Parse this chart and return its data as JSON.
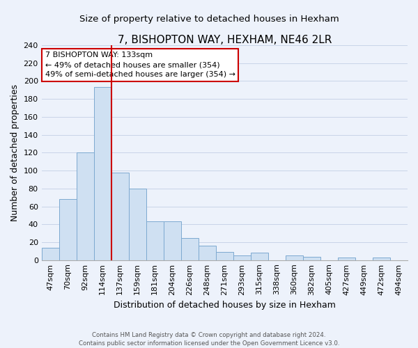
{
  "title": "7, BISHOPTON WAY, HEXHAM, NE46 2LR",
  "subtitle": "Size of property relative to detached houses in Hexham",
  "xlabel": "Distribution of detached houses by size in Hexham",
  "ylabel": "Number of detached properties",
  "bar_labels": [
    "47sqm",
    "70sqm",
    "92sqm",
    "114sqm",
    "137sqm",
    "159sqm",
    "181sqm",
    "204sqm",
    "226sqm",
    "248sqm",
    "271sqm",
    "293sqm",
    "315sqm",
    "338sqm",
    "360sqm",
    "382sqm",
    "405sqm",
    "427sqm",
    "449sqm",
    "472sqm",
    "494sqm"
  ],
  "bar_values": [
    14,
    68,
    120,
    193,
    98,
    80,
    43,
    43,
    25,
    16,
    9,
    5,
    8,
    0,
    5,
    4,
    0,
    3,
    0,
    3,
    0
  ],
  "bar_color": "#cfe0f2",
  "bar_edge_color": "#7da9d0",
  "vline_color": "#cc0000",
  "vline_x": 3.5,
  "annotation_text": "7 BISHOPTON WAY: 133sqm\n← 49% of detached houses are smaller (354)\n49% of semi-detached houses are larger (354) →",
  "annotation_box_edge_color": "#cc0000",
  "annotation_box_face_color": "#ffffff",
  "ylim": [
    0,
    240
  ],
  "yticks": [
    0,
    20,
    40,
    60,
    80,
    100,
    120,
    140,
    160,
    180,
    200,
    220,
    240
  ],
  "grid_color": "#c8d4e8",
  "background_color": "#edf2fb",
  "footer_text": "Contains HM Land Registry data © Crown copyright and database right 2024.\nContains public sector information licensed under the Open Government Licence v3.0.",
  "title_fontsize": 11,
  "subtitle_fontsize": 9.5,
  "xlabel_fontsize": 9,
  "ylabel_fontsize": 9,
  "annotation_fontsize": 8,
  "tick_labelsize": 8
}
